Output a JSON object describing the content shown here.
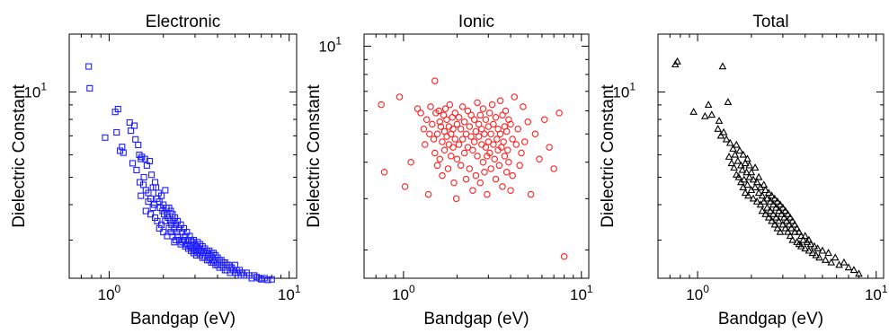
{
  "chart_data": [
    {
      "type": "scatter",
      "title": "Electronic",
      "xlabel": "Bandgap (eV)",
      "ylabel": "Dielectric Constant",
      "xscale": "log",
      "yscale": "log",
      "xlim": [
        0.6,
        11
      ],
      "ylim": [
        2.2,
        16
      ],
      "xticks": [
        {
          "value": 1,
          "base": "10",
          "exp": "0"
        },
        {
          "value": 10,
          "base": "10",
          "exp": "1"
        }
      ],
      "yticks": [
        {
          "value": 10,
          "base": "10",
          "exp": "1"
        }
      ],
      "marker": "square",
      "color": "#1f1fff",
      "series": [
        {
          "x": [
            0.77,
            0.78,
            0.95,
            1.08,
            1.1,
            1.12,
            1.15,
            1.18,
            1.2,
            1.3,
            1.32,
            1.35,
            1.38,
            1.4,
            1.42,
            1.45,
            1.47,
            1.48,
            1.5,
            1.5,
            1.52,
            1.55,
            1.56,
            1.58,
            1.6,
            1.6,
            1.62,
            1.65,
            1.65,
            1.68,
            1.7,
            1.7,
            1.72,
            1.75,
            1.75,
            1.78,
            1.8,
            1.8,
            1.82,
            1.85,
            1.85,
            1.88,
            1.9,
            1.9,
            1.92,
            1.95,
            1.95,
            1.98,
            2.0,
            2.0,
            2.02,
            2.05,
            2.05,
            2.08,
            2.1,
            2.1,
            2.12,
            2.15,
            2.15,
            2.18,
            2.2,
            2.2,
            2.22,
            2.25,
            2.25,
            2.28,
            2.3,
            2.3,
            2.32,
            2.35,
            2.35,
            2.38,
            2.4,
            2.4,
            2.45,
            2.45,
            2.5,
            2.5,
            2.55,
            2.55,
            2.6,
            2.6,
            2.65,
            2.65,
            2.7,
            2.7,
            2.75,
            2.75,
            2.8,
            2.8,
            2.85,
            2.85,
            2.9,
            2.9,
            2.95,
            2.95,
            3.0,
            3.0,
            3.05,
            3.05,
            3.1,
            3.1,
            3.15,
            3.2,
            3.2,
            3.25,
            3.3,
            3.3,
            3.35,
            3.4,
            3.4,
            3.45,
            3.5,
            3.5,
            3.55,
            3.6,
            3.6,
            3.65,
            3.7,
            3.7,
            3.75,
            3.8,
            3.8,
            3.85,
            3.9,
            3.9,
            4.0,
            4.0,
            4.1,
            4.1,
            4.2,
            4.2,
            4.3,
            4.3,
            4.4,
            4.4,
            4.5,
            4.5,
            4.6,
            4.7,
            4.7,
            4.8,
            4.9,
            5.0,
            5.0,
            5.1,
            5.2,
            5.3,
            5.4,
            5.5,
            5.6,
            5.8,
            6.0,
            6.2,
            6.4,
            6.6,
            6.8,
            7.0,
            7.3,
            7.6,
            8.0
          ],
          "y": [
            12.3,
            10.3,
            6.9,
            8.5,
            7.2,
            8.7,
            6.2,
            6.4,
            6.1,
            7.8,
            7.3,
            5.6,
            7.6,
            6.8,
            5.3,
            6.5,
            6.0,
            4.8,
            5.8,
            4.3,
            5.9,
            4.7,
            5.0,
            5.8,
            4.5,
            3.8,
            5.5,
            4.4,
            4.1,
            5.7,
            4.2,
            3.7,
            5.1,
            4.6,
            3.9,
            4.0,
            4.8,
            3.6,
            4.6,
            4.2,
            3.5,
            4.4,
            4.1,
            3.3,
            3.9,
            4.3,
            3.4,
            3.8,
            4.0,
            3.2,
            3.7,
            4.5,
            3.5,
            3.9,
            3.7,
            3.1,
            3.6,
            3.9,
            3.3,
            3.5,
            3.8,
            3.2,
            3.4,
            3.7,
            3.1,
            3.5,
            3.3,
            2.95,
            3.6,
            3.4,
            3.0,
            3.2,
            3.5,
            3.1,
            3.3,
            3.0,
            3.4,
            2.9,
            3.2,
            2.95,
            3.3,
            3.0,
            3.1,
            2.85,
            3.2,
            2.9,
            3.0,
            2.8,
            3.1,
            2.85,
            3.0,
            2.75,
            2.95,
            2.8,
            3.0,
            2.7,
            2.9,
            2.75,
            2.85,
            2.65,
            2.95,
            2.7,
            2.8,
            2.9,
            2.65,
            2.75,
            2.85,
            2.6,
            2.7,
            2.8,
            2.6,
            2.7,
            2.75,
            2.55,
            2.65,
            2.75,
            2.55,
            2.6,
            2.7,
            2.5,
            2.6,
            2.7,
            2.5,
            2.55,
            2.65,
            2.45,
            2.6,
            2.45,
            2.55,
            2.4,
            2.55,
            2.45,
            2.5,
            2.4,
            2.5,
            2.35,
            2.45,
            2.35,
            2.45,
            2.4,
            2.3,
            2.4,
            2.35,
            2.45,
            2.3,
            2.35,
            2.3,
            2.35,
            2.25,
            2.3,
            2.25,
            2.3,
            2.25,
            2.2,
            2.25,
            2.22,
            2.2,
            2.18,
            2.2,
            2.17,
            2.18
          ]
        }
      ]
    },
    {
      "type": "scatter",
      "title": "Ionic",
      "xlabel": "Bandgap (eV)",
      "ylabel": "Dielectric Constant",
      "xscale": "log",
      "yscale": "log",
      "xlim": [
        0.6,
        11
      ],
      "ylim": [
        1.6,
        11
      ],
      "xticks": [
        {
          "value": 1,
          "base": "10",
          "exp": "0"
        },
        {
          "value": 10,
          "base": "10",
          "exp": "1"
        }
      ],
      "yticks": [
        {
          "value": 10,
          "base": "10",
          "exp": "1"
        }
      ],
      "marker": "circle",
      "color": "#ff1f1f",
      "series": [
        {
          "x": [
            0.75,
            0.78,
            0.95,
            1.02,
            1.1,
            1.2,
            1.25,
            1.3,
            1.32,
            1.35,
            1.38,
            1.4,
            1.42,
            1.45,
            1.48,
            1.5,
            1.5,
            1.52,
            1.55,
            1.55,
            1.58,
            1.6,
            1.6,
            1.62,
            1.65,
            1.65,
            1.68,
            1.7,
            1.7,
            1.72,
            1.75,
            1.75,
            1.78,
            1.8,
            1.8,
            1.82,
            1.85,
            1.85,
            1.88,
            1.9,
            1.9,
            1.92,
            1.95,
            1.95,
            1.98,
            2.0,
            2.0,
            2.05,
            2.05,
            2.1,
            2.1,
            2.15,
            2.15,
            2.2,
            2.2,
            2.25,
            2.25,
            2.3,
            2.3,
            2.35,
            2.35,
            2.4,
            2.4,
            2.45,
            2.45,
            2.5,
            2.5,
            2.55,
            2.55,
            2.6,
            2.6,
            2.65,
            2.65,
            2.7,
            2.7,
            2.75,
            2.75,
            2.8,
            2.8,
            2.85,
            2.85,
            2.9,
            2.9,
            2.95,
            2.95,
            3.0,
            3.0,
            3.05,
            3.05,
            3.1,
            3.1,
            3.15,
            3.2,
            3.2,
            3.25,
            3.3,
            3.3,
            3.35,
            3.4,
            3.4,
            3.45,
            3.5,
            3.5,
            3.55,
            3.6,
            3.6,
            3.65,
            3.7,
            3.7,
            3.75,
            3.8,
            3.8,
            3.85,
            3.9,
            3.9,
            4.0,
            4.0,
            4.1,
            4.1,
            4.2,
            4.3,
            4.4,
            4.5,
            4.6,
            4.7,
            4.8,
            5.0,
            5.2,
            5.5,
            5.8,
            6.2,
            6.6,
            7.0,
            7.5,
            8.0
          ],
          "y": [
            6.3,
            3.7,
            6.7,
            3.3,
            4.0,
            6.1,
            5.9,
            5.2,
            4.6,
            5.6,
            3.1,
            5.0,
            6.2,
            5.4,
            4.8,
            7.6,
            4.3,
            5.9,
            5.0,
            3.9,
            6.0,
            5.5,
            4.1,
            5.3,
            4.7,
            3.6,
            5.8,
            5.1,
            4.4,
            6.1,
            5.6,
            4.9,
            3.8,
            5.3,
            4.6,
            6.3,
            5.0,
            4.2,
            5.7,
            5.2,
            4.5,
            3.4,
            5.9,
            4.8,
            3.0,
            5.4,
            4.1,
            5.7,
            4.6,
            5.2,
            3.9,
            6.2,
            4.8,
            5.5,
            4.3,
            3.5,
            5.0,
            6.0,
            4.5,
            5.3,
            3.8,
            4.9,
            5.8,
            4.4,
            3.2,
            5.6,
            4.7,
            5.1,
            3.6,
            6.4,
            4.2,
            5.4,
            4.9,
            3.4,
            5.8,
            4.6,
            5.2,
            4.0,
            6.1,
            3.7,
            5.0,
            4.5,
            5.6,
            4.2,
            3.1,
            5.3,
            4.7,
            5.9,
            4.3,
            5.0,
            3.8,
            6.3,
            4.6,
            5.4,
            4.1,
            3.5,
            5.7,
            4.8,
            5.2,
            4.4,
            3.9,
            6.5,
            5.0,
            4.5,
            3.3,
            5.8,
            4.7,
            5.3,
            4.2,
            6.0,
            3.7,
            5.1,
            4.4,
            5.6,
            4.0,
            3.2,
            5.4,
            4.8,
            3.6,
            6.7,
            4.6,
            5.2,
            3.9,
            4.3,
            6.2,
            4.7,
            5.5,
            3.1,
            5.0,
            4.1,
            5.6,
            4.5,
            3.8,
            5.9,
            1.9
          ]
        }
      ]
    },
    {
      "type": "scatter",
      "title": "Total",
      "xlabel": "Bandgap (eV)",
      "ylabel": "Dielectric Constant",
      "xscale": "log",
      "yscale": "log",
      "xlim": [
        0.6,
        11
      ],
      "ylim": [
        2.2,
        16
      ],
      "xticks": [
        {
          "value": 1,
          "base": "10",
          "exp": "0"
        },
        {
          "value": 10,
          "base": "10",
          "exp": "1"
        }
      ],
      "yticks": [
        {
          "value": 10,
          "base": "10",
          "exp": "1"
        }
      ],
      "marker": "triangle",
      "color": "#000000",
      "series": [
        {
          "x": [
            0.75,
            0.77,
            0.95,
            1.1,
            1.15,
            1.2,
            1.3,
            1.32,
            1.35,
            1.38,
            1.4,
            1.45,
            1.48,
            1.5,
            1.52,
            1.55,
            1.58,
            1.6,
            1.62,
            1.65,
            1.65,
            1.68,
            1.7,
            1.72,
            1.75,
            1.75,
            1.78,
            1.8,
            1.8,
            1.82,
            1.85,
            1.85,
            1.88,
            1.9,
            1.9,
            1.92,
            1.95,
            1.95,
            2.0,
            2.0,
            2.05,
            2.05,
            2.1,
            2.1,
            2.15,
            2.15,
            2.2,
            2.2,
            2.25,
            2.25,
            2.3,
            2.3,
            2.35,
            2.35,
            2.4,
            2.4,
            2.45,
            2.45,
            2.5,
            2.5,
            2.55,
            2.55,
            2.6,
            2.6,
            2.65,
            2.65,
            2.7,
            2.7,
            2.75,
            2.75,
            2.8,
            2.8,
            2.85,
            2.85,
            2.9,
            2.9,
            2.95,
            3.0,
            3.0,
            3.05,
            3.1,
            3.1,
            3.15,
            3.2,
            3.2,
            3.25,
            3.3,
            3.3,
            3.35,
            3.4,
            3.4,
            3.5,
            3.5,
            3.6,
            3.6,
            3.7,
            3.7,
            3.8,
            3.8,
            3.9,
            4.0,
            4.0,
            4.1,
            4.2,
            4.2,
            4.3,
            4.4,
            4.5,
            4.6,
            4.7,
            4.8,
            5.0,
            5.2,
            5.4,
            5.6,
            5.9,
            6.2,
            6.6,
            7.0,
            7.5,
            8.0
          ],
          "y": [
            12.5,
            12.8,
            8.5,
            8.2,
            9.0,
            8.3,
            7.4,
            7.9,
            7.0,
            12.3,
            7.2,
            6.8,
            9.2,
            5.9,
            6.6,
            5.6,
            6.3,
            5.4,
            6.0,
            5.1,
            6.5,
            5.7,
            5.0,
            6.2,
            4.8,
            5.5,
            5.3,
            4.6,
            6.0,
            4.9,
            5.6,
            4.4,
            5.2,
            4.7,
            5.8,
            4.3,
            5.0,
            5.5,
            4.5,
            5.2,
            4.2,
            4.9,
            4.6,
            5.4,
            4.1,
            4.8,
            4.4,
            5.0,
            4.0,
            4.6,
            4.3,
            3.8,
            4.7,
            4.1,
            4.5,
            3.7,
            4.2,
            3.9,
            4.4,
            3.6,
            4.1,
            3.8,
            4.3,
            3.5,
            4.0,
            3.7,
            4.2,
            3.4,
            3.9,
            3.6,
            4.1,
            3.3,
            3.8,
            3.5,
            4.0,
            3.2,
            3.7,
            3.4,
            3.9,
            3.6,
            3.3,
            3.8,
            3.5,
            3.2,
            3.7,
            3.4,
            3.1,
            3.6,
            3.3,
            3.5,
            3.0,
            3.4,
            3.2,
            3.3,
            2.95,
            3.2,
            2.9,
            3.1,
            2.85,
            3.0,
            3.1,
            2.8,
            2.95,
            3.0,
            2.75,
            2.9,
            2.7,
            2.85,
            2.65,
            2.8,
            2.6,
            2.75,
            2.55,
            2.7,
            2.5,
            2.6,
            2.45,
            2.5,
            2.4,
            2.35,
            2.28
          ]
        }
      ]
    }
  ]
}
